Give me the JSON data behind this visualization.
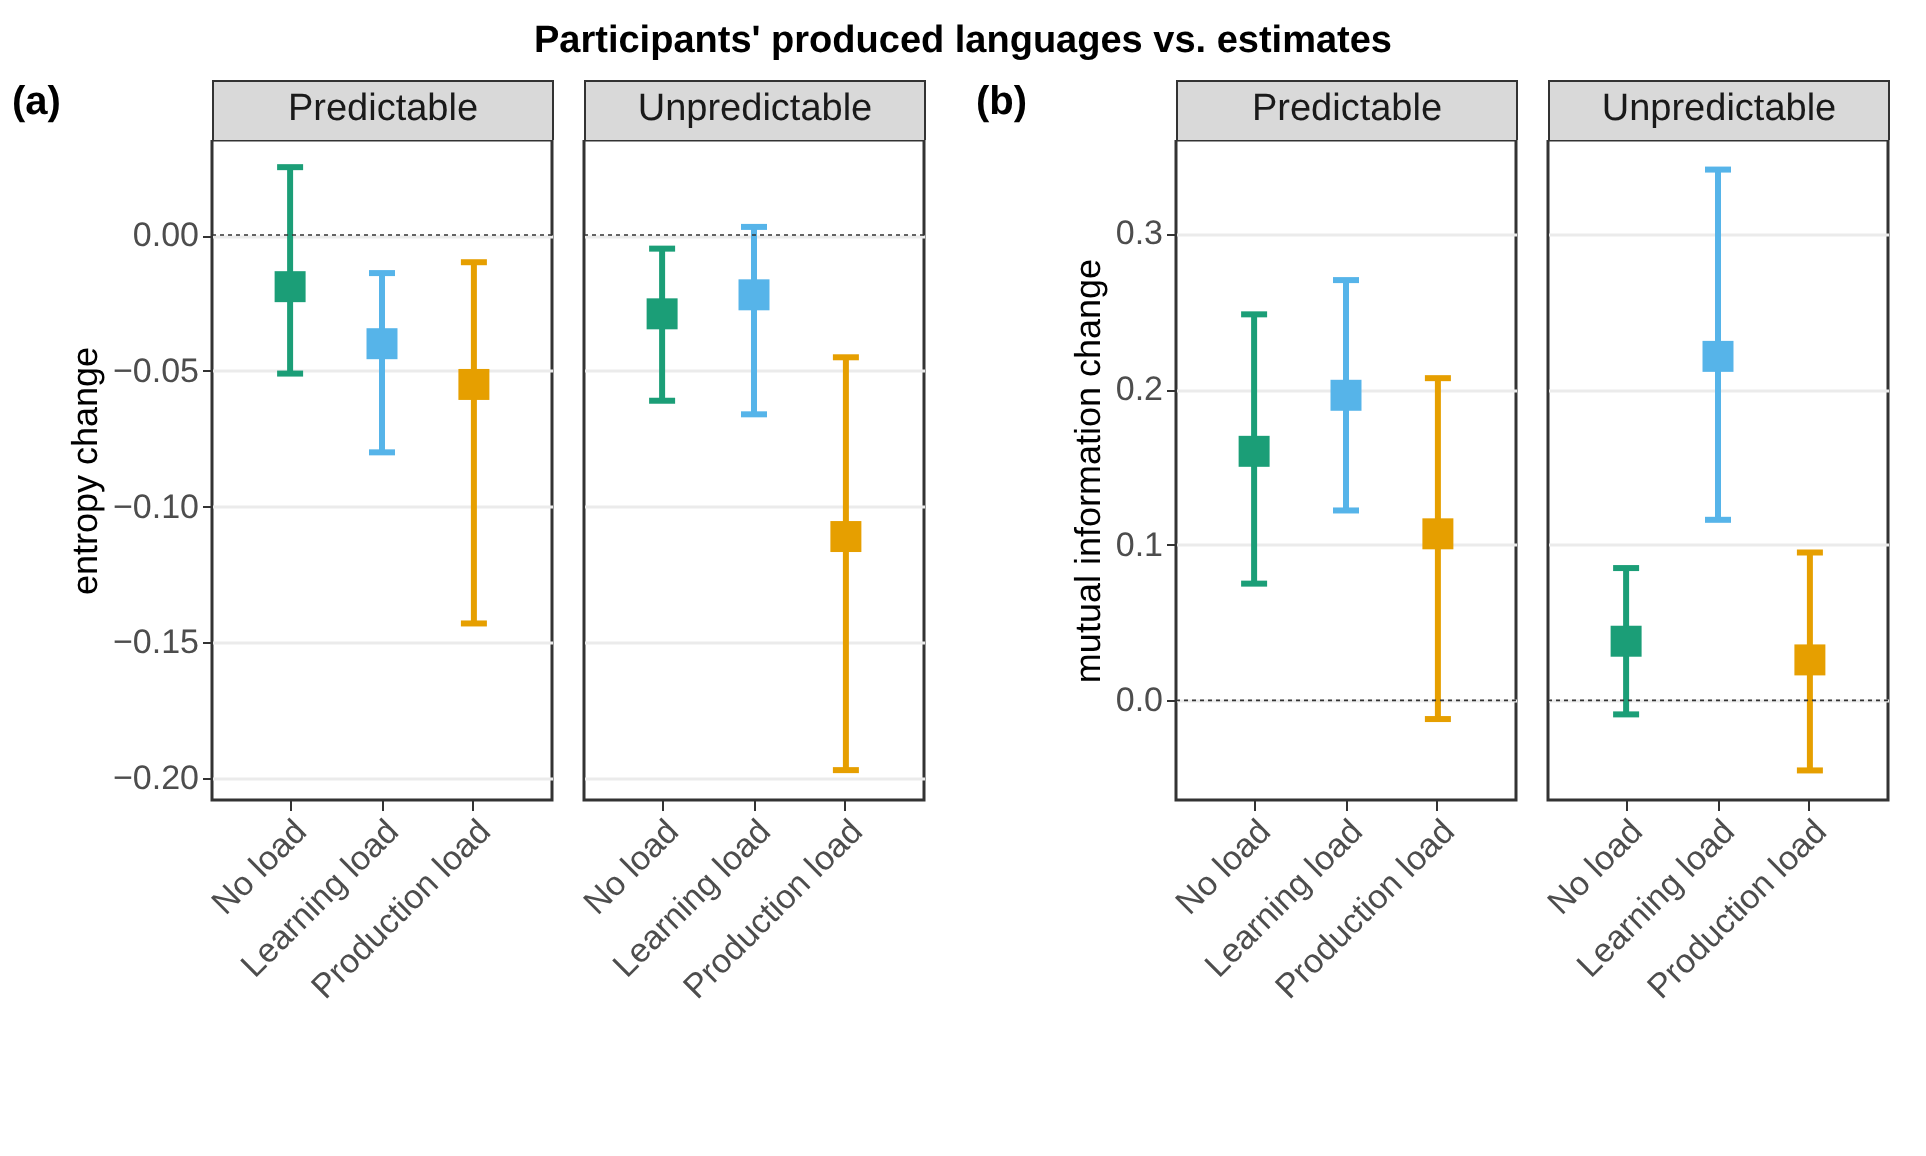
{
  "chart_data": [
    {
      "type": "scatter",
      "title": "Predictable",
      "ylabel": "entropy change",
      "annotations": [
        "Participants' produced languages vs. estimates",
        "(a)"
      ],
      "categories": [
        "No load",
        "Learning load",
        "Production load"
      ],
      "values": [
        -0.019,
        -0.04,
        -0.055
      ],
      "errors": [
        [
          -0.051,
          0.025
        ],
        [
          -0.08,
          -0.014
        ],
        [
          -0.143,
          -0.01
        ]
      ],
      "colors": [
        "#1b9e77",
        "#56b4e9",
        "#e69f00"
      ],
      "marker": "square",
      "ylim": [
        -0.208,
        0.035
      ],
      "yticks": [
        {
          "value": -0.2,
          "label": "−0.20"
        },
        {
          "value": -0.15,
          "label": "−0.15"
        },
        {
          "value": -0.1,
          "label": "−0.10"
        },
        {
          "value": -0.05,
          "label": "−0.05"
        },
        {
          "value": 0,
          "label": "0.00"
        }
      ],
      "grid": "y",
      "ref_lines": [
        {
          "axis": "y",
          "value": 0,
          "color": "#333333",
          "line_style": "dotted"
        }
      ]
    },
    {
      "type": "scatter",
      "title": "Unpredictable",
      "categories": [
        "No load",
        "Learning load",
        "Production load"
      ],
      "values": [
        -0.029,
        -0.022,
        -0.111
      ],
      "errors": [
        [
          -0.061,
          -0.005
        ],
        [
          -0.066,
          0.003
        ],
        [
          -0.197,
          -0.045
        ]
      ],
      "colors": [
        "#1b9e77",
        "#56b4e9",
        "#e69f00"
      ],
      "marker": "square",
      "ylim": [
        -0.208,
        0.035
      ],
      "grid": "y",
      "tick_labels": "x",
      "ref_lines": [
        {
          "axis": "y",
          "value": 0,
          "color": "#333333",
          "line_style": "dotted"
        }
      ]
    },
    {
      "type": "scatter",
      "title": "Predictable",
      "ylabel": "mutual information change",
      "annotations": [
        "(b)"
      ],
      "categories": [
        "No load",
        "Learning load",
        "Production load"
      ],
      "values": [
        0.16,
        0.196,
        0.107
      ],
      "errors": [
        [
          0.075,
          0.248
        ],
        [
          0.122,
          0.27
        ],
        [
          -0.012,
          0.207
        ]
      ],
      "colors": [
        "#1b9e77",
        "#56b4e9",
        "#e69f00"
      ],
      "marker": "square",
      "ylim": [
        -0.064,
        0.36
      ],
      "yticks": [
        {
          "value": 0,
          "label": "0.0"
        },
        0.1,
        0.2,
        0.3
      ],
      "grid": "y",
      "ref_lines": [
        {
          "axis": "y",
          "value": 0,
          "color": "#333333",
          "line_style": "dotted"
        }
      ]
    },
    {
      "type": "scatter",
      "title": "Unpredictable",
      "categories": [
        "No load",
        "Learning load",
        "Production load"
      ],
      "values": [
        0.038,
        0.221,
        0.026
      ],
      "errors": [
        [
          -0.009,
          0.085
        ],
        [
          0.116,
          0.341
        ],
        [
          -0.045,
          0.095
        ]
      ],
      "colors": [
        "#1b9e77",
        "#56b4e9",
        "#e69f00"
      ],
      "marker": "square",
      "ylim": [
        -0.064,
        0.36
      ],
      "grid": "y",
      "tick_labels": "x",
      "ref_lines": [
        {
          "axis": "y",
          "value": 0,
          "color": "#333333",
          "line_style": "dotted"
        }
      ]
    }
  ]
}
